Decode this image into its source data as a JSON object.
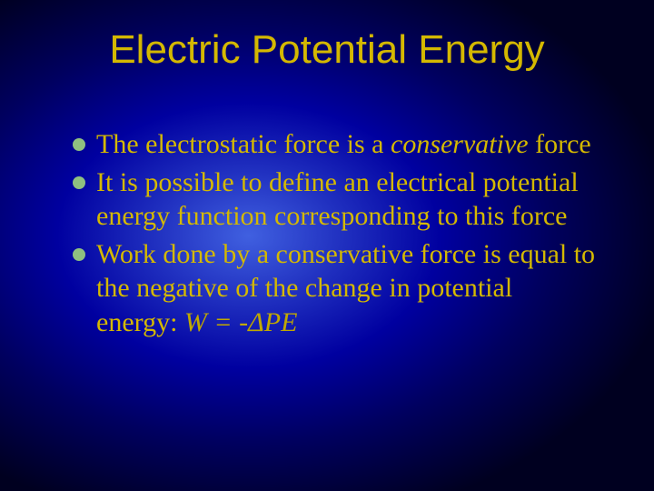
{
  "slide": {
    "title": "Electric Potential Energy",
    "title_color": "#d4b800",
    "bullet_color": "#8fc080",
    "text_color": "#d4b800",
    "formula_color": "#c0a800",
    "background_gradient": {
      "type": "radial",
      "center": "38% 48%",
      "stops": [
        "#4060e0",
        "#2030c0",
        "#0000a0",
        "#000060",
        "#000020"
      ]
    },
    "bullets": [
      {
        "pre": "The electrostatic force is a ",
        "italic": "conservative",
        "post": " force"
      },
      {
        "pre": "It is possible to define an electrical potential energy function corresponding to this force",
        "italic": "",
        "post": ""
      },
      {
        "pre": "Work done by a conservative force is equal to the negative of the change in potential energy:  ",
        "italic": "W = -ΔPE",
        "post": ""
      }
    ],
    "fonts": {
      "title_family": "Arial",
      "title_size_pt": 44,
      "body_family": "Times New Roman",
      "body_size_pt": 30
    }
  }
}
